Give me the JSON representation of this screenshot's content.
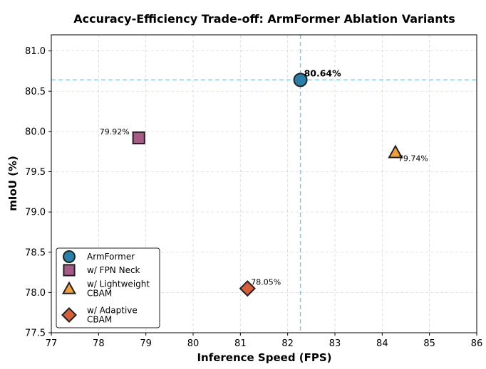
{
  "chart_data": {
    "type": "scatter",
    "title": "Accuracy-Efficiency Trade-off: ArmFormer Ablation Variants",
    "xlabel": "Inference Speed (FPS)",
    "ylabel": "mIoU (%)",
    "xlim": [
      77,
      86
    ],
    "ylim": [
      77.5,
      81.2
    ],
    "xticks": [
      "77",
      "78",
      "79",
      "80",
      "81",
      "82",
      "83",
      "84",
      "85",
      "86"
    ],
    "yticks": [
      "77.5",
      "78.0",
      "78.5",
      "79.0",
      "79.5",
      "80.0",
      "80.5",
      "81.0"
    ],
    "grid": true,
    "reference_lines": {
      "x": 82.27,
      "y": 80.64
    },
    "legend_position": "lower-left",
    "series": [
      {
        "name": "ArmFormer",
        "marker": "circle",
        "color": "#2a7fa6",
        "x": 82.27,
        "y": 80.64,
        "label": "80.64%",
        "label_bold": true
      },
      {
        "name": "w/ FPN Neck",
        "marker": "square",
        "color": "#a65a86",
        "x": 78.85,
        "y": 79.92,
        "label": "79.92%",
        "label_bold": false
      },
      {
        "name": "w/ Lightweight CBAM",
        "legend_lines": [
          "w/ Lightweight",
          "CBAM"
        ],
        "marker": "triangle",
        "color": "#f0a03a",
        "x": 84.28,
        "y": 79.74,
        "label": "79.74%",
        "label_bold": false
      },
      {
        "name": "w/ Adaptive CBAM",
        "legend_lines": [
          "w/ Adaptive",
          "CBAM"
        ],
        "marker": "diamond",
        "color": "#d35f3c",
        "x": 81.15,
        "y": 78.05,
        "label": "78.05%",
        "label_bold": false
      }
    ]
  }
}
